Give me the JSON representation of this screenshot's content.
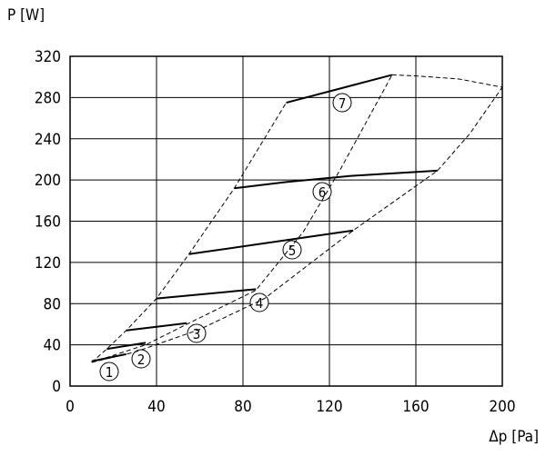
{
  "chart_data": {
    "type": "line",
    "x_label": "Δp [Pa]",
    "y_label": "P [W]",
    "xlim": [
      0,
      200
    ],
    "xticks": [
      0,
      40,
      80,
      120,
      160,
      200
    ],
    "ylim": [
      0,
      320
    ],
    "yticks": [
      0,
      40,
      80,
      120,
      160,
      200,
      240,
      280,
      320
    ],
    "grid": true,
    "color": "#000000",
    "series": [
      {
        "name": "1",
        "x": [
          10,
          26
        ],
        "values": [
          24,
          31
        ]
      },
      {
        "name": "2",
        "x": [
          17,
          35
        ],
        "values": [
          36,
          42
        ]
      },
      {
        "name": "3",
        "x": [
          26,
          54
        ],
        "values": [
          54,
          61
        ]
      },
      {
        "name": "4",
        "x": [
          40,
          86
        ],
        "values": [
          85,
          94
        ]
      },
      {
        "name": "5",
        "x": [
          55,
          131
        ],
        "values": [
          128,
          151
        ]
      },
      {
        "name": "6",
        "x": [
          76,
          100,
          130,
          170
        ],
        "values": [
          192,
          198,
          204,
          209
        ]
      },
      {
        "name": "7",
        "x": [
          100,
          149
        ],
        "values": [
          275,
          302
        ]
      },
      {
        "dashed": true,
        "x": [
          10,
          17,
          26,
          40,
          55,
          76,
          100
        ],
        "values": [
          23,
          36,
          54,
          85,
          128,
          192,
          275
        ]
      },
      {
        "dashed": true,
        "x": [
          10,
          35,
          54,
          86,
          108,
          125,
          149
        ],
        "values": [
          23,
          40,
          60,
          93,
          150,
          210,
          302
        ]
      },
      {
        "dashed": true,
        "x": [
          10,
          30,
          60,
          90,
          131,
          170,
          185,
          200
        ],
        "values": [
          23,
          33,
          55,
          85,
          151,
          209,
          245,
          290
        ]
      },
      {
        "dashed": true,
        "x": [
          149,
          160,
          180,
          200
        ],
        "values": [
          302,
          301,
          298,
          290
        ]
      }
    ]
  }
}
